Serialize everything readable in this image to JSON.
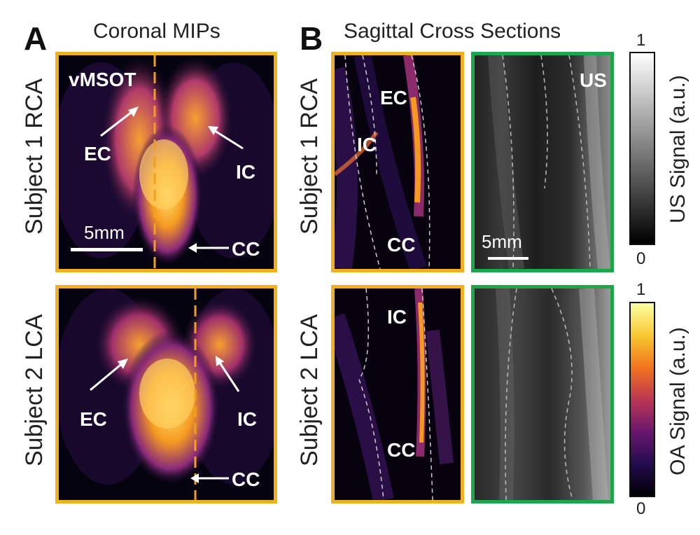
{
  "panels": {
    "a": {
      "letter": "A",
      "title": "Coronal MIPs"
    },
    "b": {
      "letter": "B",
      "title": "Sagittal Cross Sections"
    }
  },
  "rows": {
    "r1": "Subject 1 RCA",
    "r2": "Subject 2 LCA"
  },
  "annotations": {
    "vmsot": "vMSOT",
    "ec": "EC",
    "ic": "IC",
    "cc": "CC",
    "us": "US",
    "scale": "5mm"
  },
  "colorbars": {
    "us": {
      "label": "US Signal (a.u.)",
      "max": "1",
      "min": "0",
      "colormap": "gray"
    },
    "oa": {
      "label": "OA Signal (a.u.)",
      "max": "1",
      "min": "0",
      "colormap": "inferno"
    }
  },
  "colors": {
    "orange_frame": "#f0b020",
    "green_frame": "#1fa64a",
    "dashed_line": "#f0a020"
  }
}
